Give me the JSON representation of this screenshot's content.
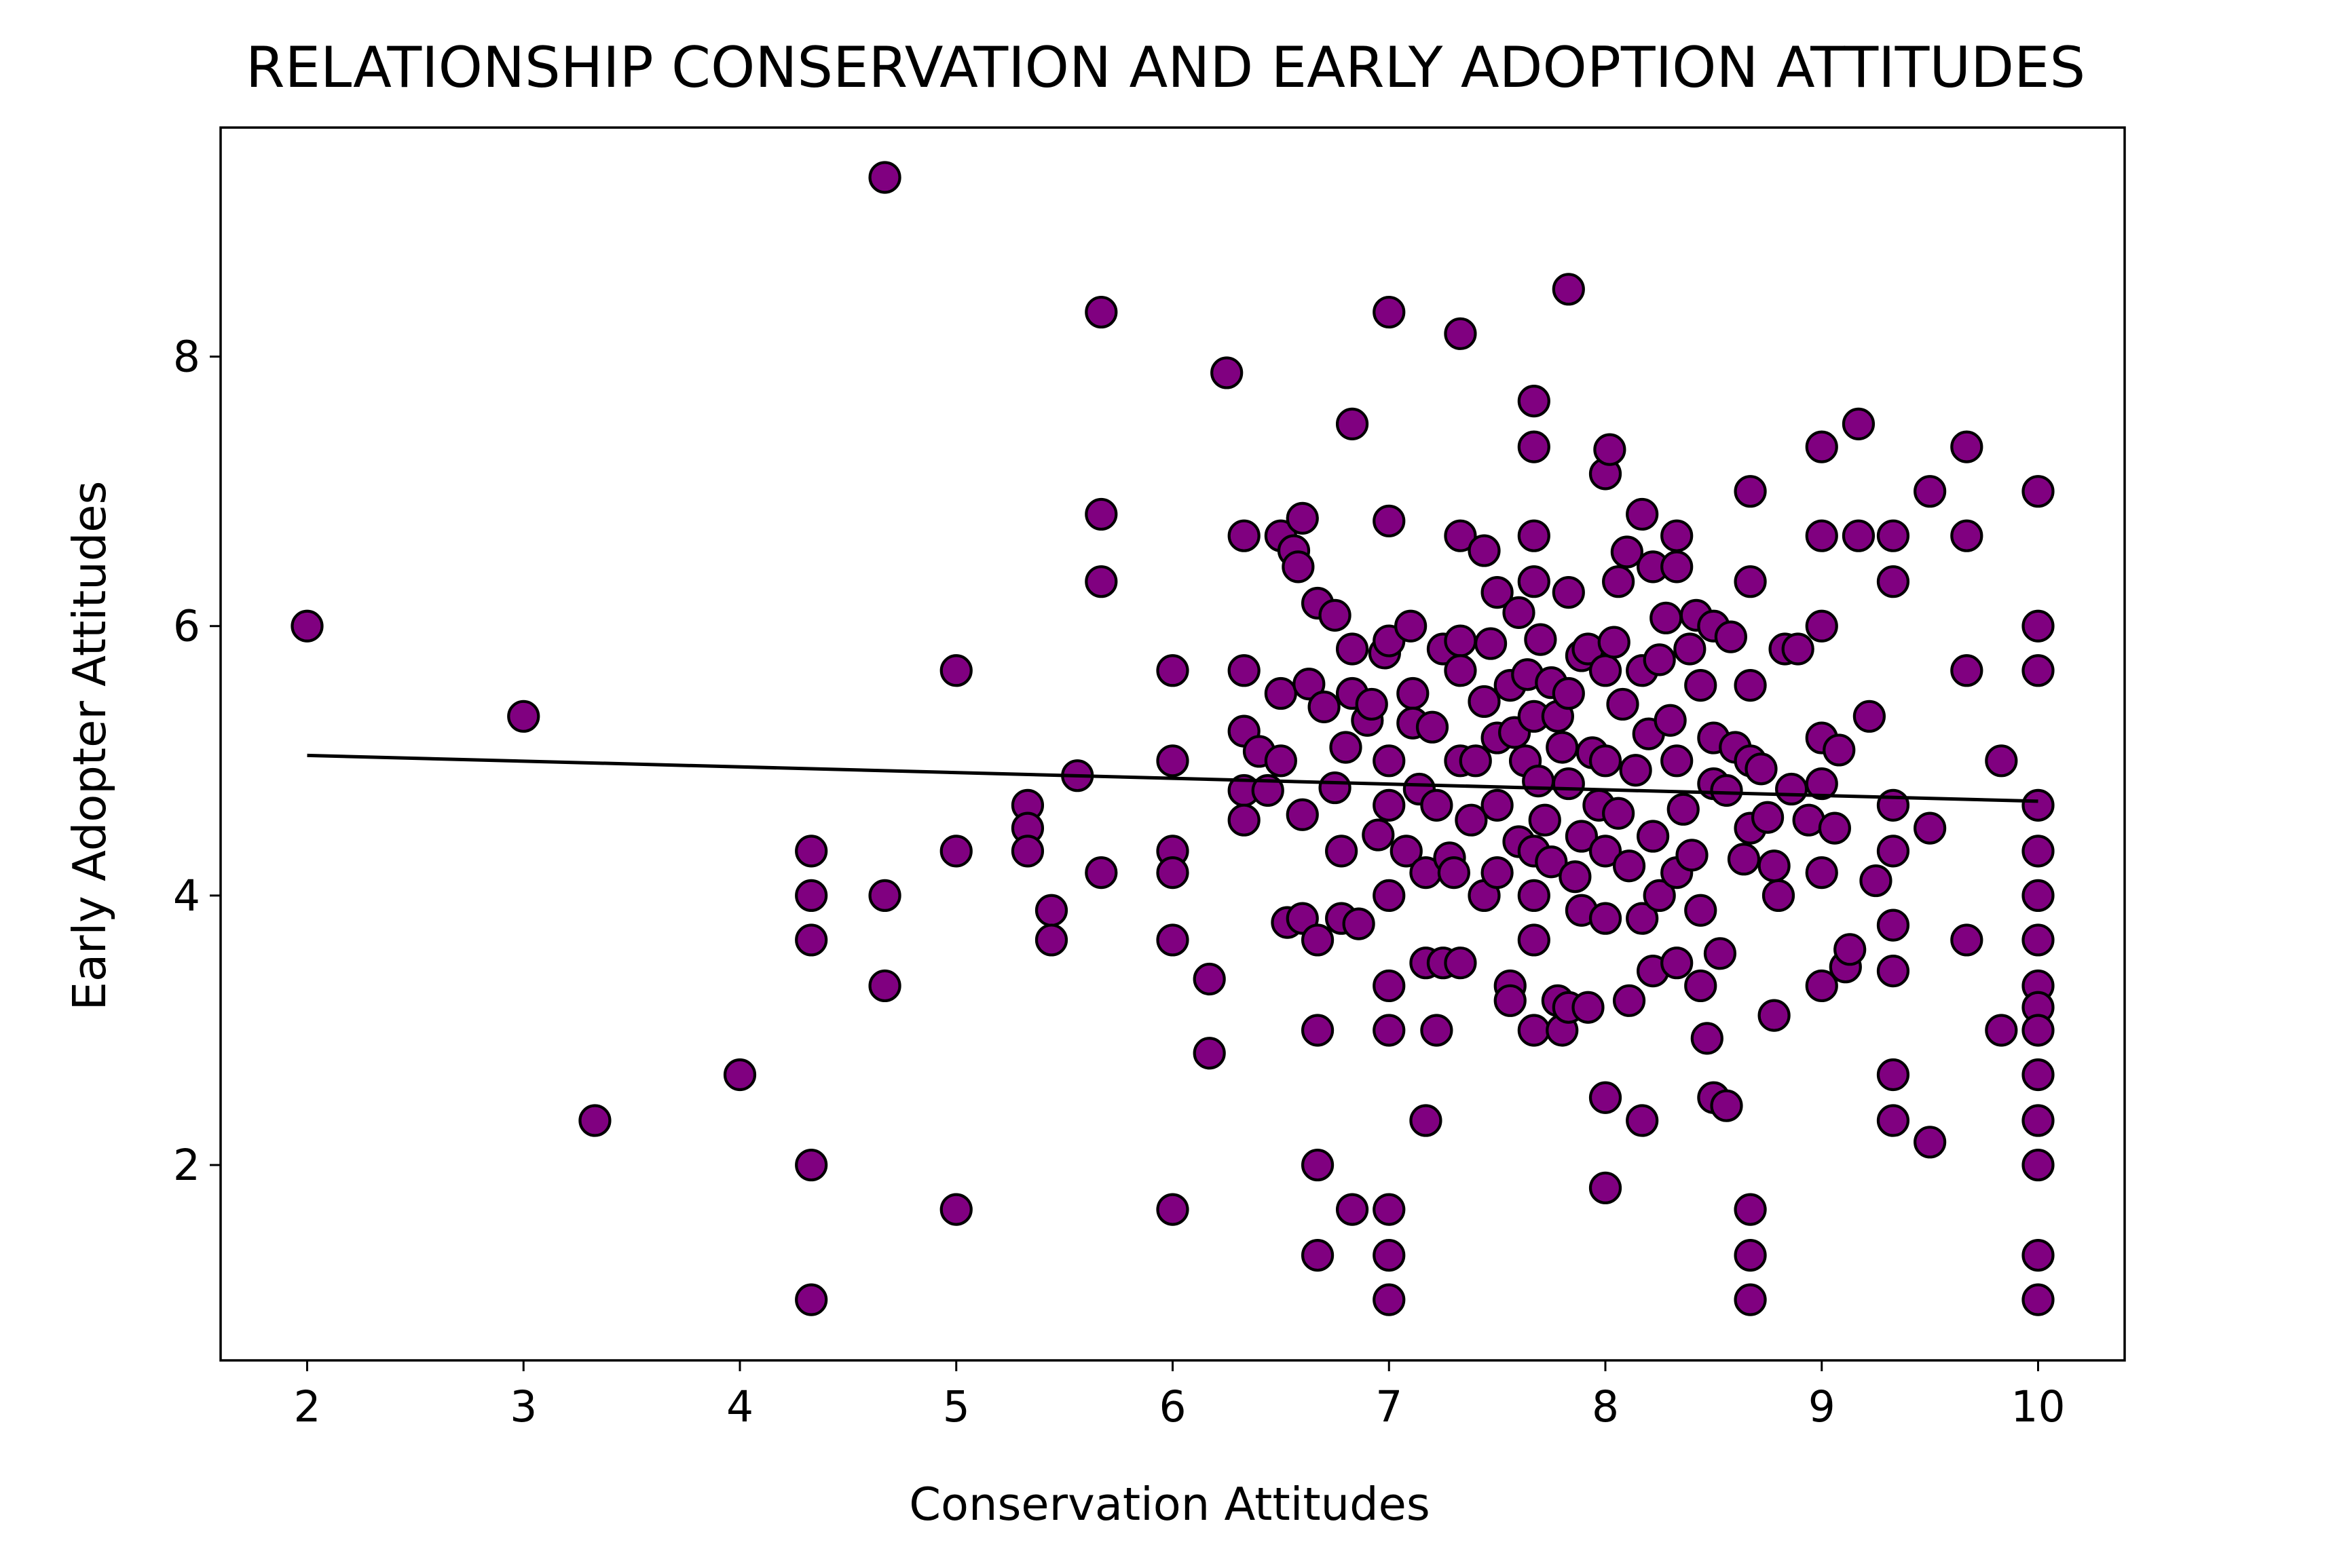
{
  "colors": {
    "point_fill": "#800080",
    "point_edge": "#000000",
    "trend_line": "#000000",
    "background": "#ffffff"
  },
  "chart_data": {
    "type": "scatter",
    "title": "RELATIONSHIP CONSERVATION AND EARLY ADOPTION ATTITUDES",
    "xlabel": "Conservation Attitudes",
    "ylabel": "Early Adopter Attitudes",
    "xlim": [
      1.6,
      10.4
    ],
    "ylim": [
      0.55,
      9.7
    ],
    "xticks": [
      2,
      3,
      4,
      5,
      6,
      7,
      8,
      9,
      10
    ],
    "yticks": [
      2,
      4,
      6,
      8
    ],
    "grid": false,
    "trend_line": {
      "x": [
        2,
        10
      ],
      "y": [
        5.04,
        4.7
      ]
    },
    "series": [
      {
        "points": [
          [
            2,
            6.0
          ],
          [
            3,
            5.33
          ],
          [
            3.33,
            2.33
          ],
          [
            4,
            2.67
          ],
          [
            4.33,
            4.33
          ],
          [
            4.33,
            4.0
          ],
          [
            4.33,
            3.67
          ],
          [
            4.33,
            2.0
          ],
          [
            4.33,
            1.0
          ],
          [
            4.67,
            9.33
          ],
          [
            4.67,
            4.0
          ],
          [
            4.67,
            3.33
          ],
          [
            5,
            5.67
          ],
          [
            5,
            4.33
          ],
          [
            5,
            1.67
          ],
          [
            5.33,
            4.67
          ],
          [
            5.33,
            4.5
          ],
          [
            5.33,
            4.33
          ],
          [
            5.44,
            3.89
          ],
          [
            5.44,
            3.67
          ],
          [
            5.56,
            4.89
          ],
          [
            5.67,
            8.33
          ],
          [
            5.67,
            6.83
          ],
          [
            5.67,
            6.33
          ],
          [
            5.67,
            4.17
          ],
          [
            6,
            5.67
          ],
          [
            6,
            5.0
          ],
          [
            6,
            4.33
          ],
          [
            6,
            4.17
          ],
          [
            6,
            3.67
          ],
          [
            6,
            1.67
          ],
          [
            6.17,
            3.38
          ],
          [
            6.17,
            2.83
          ],
          [
            6.25,
            7.88
          ],
          [
            6.33,
            6.67
          ],
          [
            6.33,
            5.67
          ],
          [
            6.33,
            5.22
          ],
          [
            6.33,
            4.78
          ],
          [
            6.33,
            4.56
          ],
          [
            6.4,
            5.07
          ],
          [
            6.44,
            4.78
          ],
          [
            6.5,
            6.67
          ],
          [
            6.5,
            5.5
          ],
          [
            6.5,
            5.0
          ],
          [
            6.53,
            3.8
          ],
          [
            6.56,
            6.56
          ],
          [
            6.58,
            6.44
          ],
          [
            6.6,
            6.8
          ],
          [
            6.6,
            4.6
          ],
          [
            6.6,
            3.83
          ],
          [
            6.63,
            5.57
          ],
          [
            6.67,
            6.17
          ],
          [
            6.67,
            3.67
          ],
          [
            6.67,
            3.0
          ],
          [
            6.67,
            2.0
          ],
          [
            6.67,
            1.33
          ],
          [
            6.7,
            5.4
          ],
          [
            6.75,
            6.08
          ],
          [
            6.75,
            4.8
          ],
          [
            6.78,
            3.83
          ],
          [
            6.78,
            4.33
          ],
          [
            6.8,
            5.1
          ],
          [
            6.83,
            7.5
          ],
          [
            6.83,
            5.83
          ],
          [
            6.83,
            5.5
          ],
          [
            6.83,
            1.67
          ],
          [
            6.86,
            3.79
          ],
          [
            6.9,
            5.3
          ],
          [
            6.92,
            5.42
          ],
          [
            6.95,
            4.45
          ],
          [
            6.98,
            5.8
          ],
          [
            7,
            8.33
          ],
          [
            7,
            6.78
          ],
          [
            7,
            5.89
          ],
          [
            7,
            5.0
          ],
          [
            7,
            4.67
          ],
          [
            7,
            4.0
          ],
          [
            7,
            3.33
          ],
          [
            7,
            3.0
          ],
          [
            7,
            1.67
          ],
          [
            7,
            1.33
          ],
          [
            7,
            1.0
          ],
          [
            7.08,
            4.33
          ],
          [
            7.1,
            6.0
          ],
          [
            7.11,
            5.5
          ],
          [
            7.11,
            5.28
          ],
          [
            7.14,
            4.79
          ],
          [
            7.17,
            4.17
          ],
          [
            7.17,
            3.5
          ],
          [
            7.17,
            2.33
          ],
          [
            7.2,
            5.25
          ],
          [
            7.22,
            4.67
          ],
          [
            7.22,
            3.0
          ],
          [
            7.25,
            3.5
          ],
          [
            7.25,
            5.83
          ],
          [
            7.28,
            4.28
          ],
          [
            7.3,
            4.17
          ],
          [
            7.33,
            8.17
          ],
          [
            7.33,
            6.67
          ],
          [
            7.33,
            5.89
          ],
          [
            7.33,
            5.67
          ],
          [
            7.33,
            5.0
          ],
          [
            7.33,
            3.5
          ],
          [
            7.38,
            4.56
          ],
          [
            7.4,
            5.0
          ],
          [
            7.44,
            6.56
          ],
          [
            7.44,
            5.44
          ],
          [
            7.44,
            4.0
          ],
          [
            7.47,
            5.87
          ],
          [
            7.5,
            6.25
          ],
          [
            7.5,
            5.17
          ],
          [
            7.5,
            4.17
          ],
          [
            7.5,
            4.67
          ],
          [
            7.56,
            5.56
          ],
          [
            7.56,
            3.33
          ],
          [
            7.56,
            3.22
          ],
          [
            7.58,
            5.21
          ],
          [
            7.6,
            6.1
          ],
          [
            7.6,
            4.4
          ],
          [
            7.63,
            5.0
          ],
          [
            7.64,
            5.64
          ],
          [
            7.67,
            7.67
          ],
          [
            7.67,
            7.33
          ],
          [
            7.67,
            6.67
          ],
          [
            7.67,
            6.33
          ],
          [
            7.67,
            5.33
          ],
          [
            7.67,
            4.33
          ],
          [
            7.67,
            4.0
          ],
          [
            7.67,
            3.67
          ],
          [
            7.67,
            3.0
          ],
          [
            7.69,
            4.85
          ],
          [
            7.7,
            5.9
          ],
          [
            7.72,
            4.56
          ],
          [
            7.75,
            5.58
          ],
          [
            7.75,
            4.25
          ],
          [
            7.78,
            3.22
          ],
          [
            7.78,
            5.33
          ],
          [
            7.8,
            5.1
          ],
          [
            7.8,
            3.0
          ],
          [
            7.83,
            8.5
          ],
          [
            7.83,
            6.25
          ],
          [
            7.83,
            5.5
          ],
          [
            7.83,
            4.83
          ],
          [
            7.83,
            3.17
          ],
          [
            7.86,
            4.14
          ],
          [
            7.89,
            5.78
          ],
          [
            7.89,
            4.44
          ],
          [
            7.89,
            3.89
          ],
          [
            7.92,
            5.83
          ],
          [
            7.92,
            3.17
          ],
          [
            7.94,
            5.06
          ],
          [
            7.97,
            4.67
          ],
          [
            8,
            7.13
          ],
          [
            8,
            5.67
          ],
          [
            8,
            5.0
          ],
          [
            8,
            4.33
          ],
          [
            8,
            3.83
          ],
          [
            8,
            2.5
          ],
          [
            8,
            1.83
          ],
          [
            8.02,
            7.31
          ],
          [
            8.04,
            5.88
          ],
          [
            8.06,
            6.33
          ],
          [
            8.06,
            4.61
          ],
          [
            8.08,
            5.42
          ],
          [
            8.1,
            6.55
          ],
          [
            8.11,
            4.22
          ],
          [
            8.11,
            3.22
          ],
          [
            8.14,
            4.93
          ],
          [
            8.17,
            6.83
          ],
          [
            8.17,
            5.67
          ],
          [
            8.17,
            3.83
          ],
          [
            8.17,
            2.33
          ],
          [
            8.2,
            5.2
          ],
          [
            8.22,
            6.44
          ],
          [
            8.22,
            4.44
          ],
          [
            8.22,
            3.44
          ],
          [
            8.25,
            5.75
          ],
          [
            8.25,
            4.0
          ],
          [
            8.28,
            6.06
          ],
          [
            8.3,
            5.3
          ],
          [
            8.33,
            6.67
          ],
          [
            8.33,
            6.44
          ],
          [
            8.33,
            5.0
          ],
          [
            8.33,
            4.17
          ],
          [
            8.33,
            3.5
          ],
          [
            8.36,
            4.64
          ],
          [
            8.39,
            5.83
          ],
          [
            8.4,
            4.3
          ],
          [
            8.42,
            6.08
          ],
          [
            8.44,
            5.56
          ],
          [
            8.44,
            3.89
          ],
          [
            8.44,
            3.33
          ],
          [
            8.47,
            2.94
          ],
          [
            8.5,
            6.0
          ],
          [
            8.5,
            5.17
          ],
          [
            8.5,
            4.83
          ],
          [
            8.5,
            2.5
          ],
          [
            8.53,
            3.57
          ],
          [
            8.56,
            4.78
          ],
          [
            8.56,
            2.44
          ],
          [
            8.58,
            5.92
          ],
          [
            8.6,
            5.1
          ],
          [
            8.64,
            4.27
          ],
          [
            8.67,
            7.0
          ],
          [
            8.67,
            6.33
          ],
          [
            8.67,
            5.56
          ],
          [
            8.67,
            5.0
          ],
          [
            8.67,
            4.5
          ],
          [
            8.67,
            1.67
          ],
          [
            8.67,
            1.33
          ],
          [
            8.67,
            1.0
          ],
          [
            8.72,
            4.94
          ],
          [
            8.75,
            4.58
          ],
          [
            8.78,
            4.22
          ],
          [
            8.78,
            3.11
          ],
          [
            8.8,
            4.0
          ],
          [
            8.83,
            5.83
          ],
          [
            8.86,
            4.79
          ],
          [
            8.89,
            5.83
          ],
          [
            8.94,
            4.56
          ],
          [
            9,
            7.33
          ],
          [
            9,
            6.67
          ],
          [
            9,
            6.0
          ],
          [
            9,
            5.17
          ],
          [
            9,
            4.83
          ],
          [
            9,
            4.17
          ],
          [
            9,
            3.33
          ],
          [
            9.06,
            4.5
          ],
          [
            9.08,
            5.08
          ],
          [
            9.11,
            3.47
          ],
          [
            9.13,
            3.6
          ],
          [
            9.17,
            7.5
          ],
          [
            9.17,
            6.67
          ],
          [
            9.22,
            5.33
          ],
          [
            9.25,
            4.11
          ],
          [
            9.33,
            6.67
          ],
          [
            9.33,
            6.33
          ],
          [
            9.33,
            4.67
          ],
          [
            9.33,
            4.33
          ],
          [
            9.33,
            3.78
          ],
          [
            9.33,
            3.44
          ],
          [
            9.33,
            2.67
          ],
          [
            9.33,
            2.33
          ],
          [
            9.5,
            7.0
          ],
          [
            9.5,
            4.5
          ],
          [
            9.5,
            2.17
          ],
          [
            9.67,
            7.33
          ],
          [
            9.67,
            6.67
          ],
          [
            9.67,
            5.67
          ],
          [
            9.67,
            3.67
          ],
          [
            9.83,
            5.0
          ],
          [
            9.83,
            3.0
          ],
          [
            10,
            7.0
          ],
          [
            10,
            6.0
          ],
          [
            10,
            5.67
          ],
          [
            10,
            4.67
          ],
          [
            10,
            4.33
          ],
          [
            10,
            4.0
          ],
          [
            10,
            3.67
          ],
          [
            10,
            3.33
          ],
          [
            10,
            3.17
          ],
          [
            10,
            3.0
          ],
          [
            10,
            2.67
          ],
          [
            10,
            2.33
          ],
          [
            10,
            2.0
          ],
          [
            10,
            1.33
          ],
          [
            10,
            1.0
          ]
        ]
      }
    ]
  }
}
